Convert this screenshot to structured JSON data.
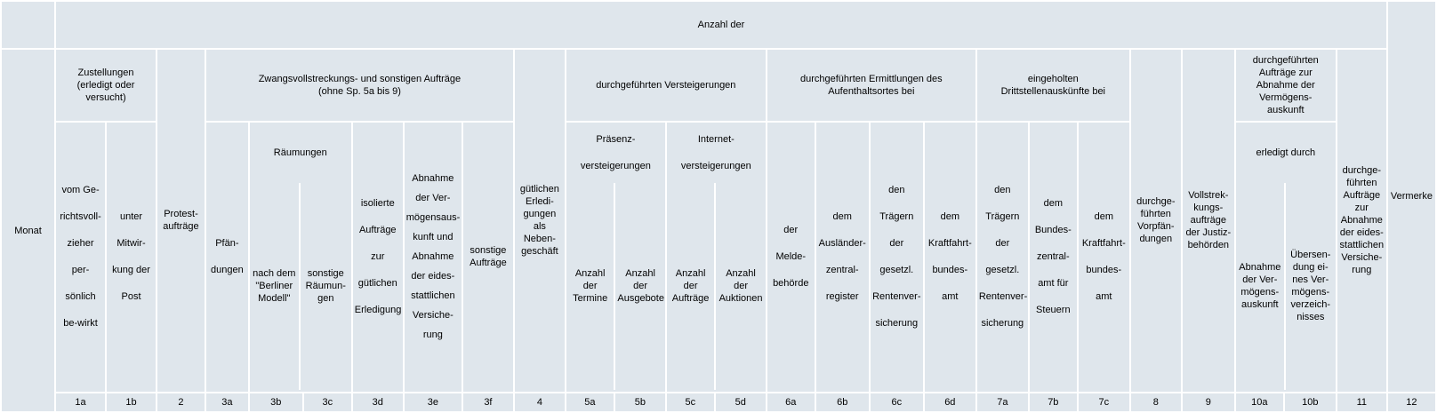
{
  "header": {
    "anzahl_der": "Anzahl der",
    "monat": "Monat",
    "vermerke": "Vermerke",
    "zustellungen": "Zustellungen\n(erledigt oder\nversucht)",
    "protest": "Protest-\naufträge",
    "zwangsvollstreckung": "Zwangsvollstreckungs- und sonstigen Aufträge\n(ohne Sp. 5a bis 9)",
    "guetlichen": "gütlichen\nErledi-\ngungen\nals\nNeben-\ngeschäft",
    "versteigerungen": "durchgeführten Versteigerungen",
    "ermittlungen": "durchgeführten Ermittlungen des\nAufenthaltsortes bei",
    "drittstellen": "eingeholten\nDrittstellenauskünfte bei",
    "vorpfaendungen": "durchge-\nführten\nVorpfän-\ndungen",
    "vollstreckungsauftraege": "Vollstrek-\nkungs-\naufträge\nder Justiz-\nbehörden",
    "abnahme_vermoegensauskunft": "durchgeführten\nAufträge zur\nAbnahme der\nVermögens-\nauskunft",
    "abnahme_eides": "durchge-\nführten\nAufträge\nzur\nAbnahme\nder eides-\nstattlichen\nVersiche-\nrung",
    "raeumungen": "Räumungen",
    "praesenz": "Präsenz-\nversteigerungen",
    "internet": "Internet-\nversteigerungen",
    "erledigt_durch": "erledigt durch"
  },
  "sub": {
    "c1a": "vom Ge-\nrichtsvoll-\nzieher\nper-\nsönlich\nbe-wirkt",
    "c1b": "unter\nMitwir-\nkung der\nPost",
    "c3a": "Pfän-\ndungen",
    "c3b": "nach dem\n\"Berliner\nModell\"",
    "c3c": "sonstige\nRäumun-\ngen",
    "c3d": "isolierte\nAufträge\nzur\ngütlichen\nErledigung",
    "c3e": "Abnahme\nder Ver-\nmögensaus-\nkunft und\nAbnahme\nder eides-\nstattlichen\nVersiche-\nrung",
    "c3f": "sonstige\nAufträge",
    "c5a": "Anzahl\nder\nTermine",
    "c5b": "Anzahl der\nAusgebote",
    "c5c": "Anzahl\nder\nAufträge",
    "c5d": "Anzahl\nder\nAuktionen",
    "c6a": "der\nMelde-\nbehörde",
    "c6b": "dem\nAusländer-\nzentral-\nregister",
    "c6c": "den\nTrägern\nder\ngesetzl.\nRentenver-\nsicherung",
    "c6d": "dem\nKraftfahrt-\nbundes-\namt",
    "c7a": "den\nTrägern\nder\ngesetzl.\nRentenver-\nsicherung",
    "c7b": "dem\nBundes-\nzentral-\namt für\nSteuern",
    "c7c": "dem\nKraftfahrt-\nbundes-\namt",
    "c10a": "Abnahme\nder Ver-\nmögens-\nauskunft",
    "c10b": "Übersen-\ndung ei-\nnes Ver-\nmögens-\nverzeich-\nnisses"
  },
  "numbers": [
    "",
    "1a",
    "1b",
    "2",
    "3a",
    "3b",
    "3c",
    "3d",
    "3e",
    "3f",
    "4",
    "5a",
    "5b",
    "5c",
    "5d",
    "6a",
    "6b",
    "6c",
    "6d",
    "7a",
    "7b",
    "7c",
    "8",
    "9",
    "10a",
    "10b",
    "11",
    "12"
  ]
}
